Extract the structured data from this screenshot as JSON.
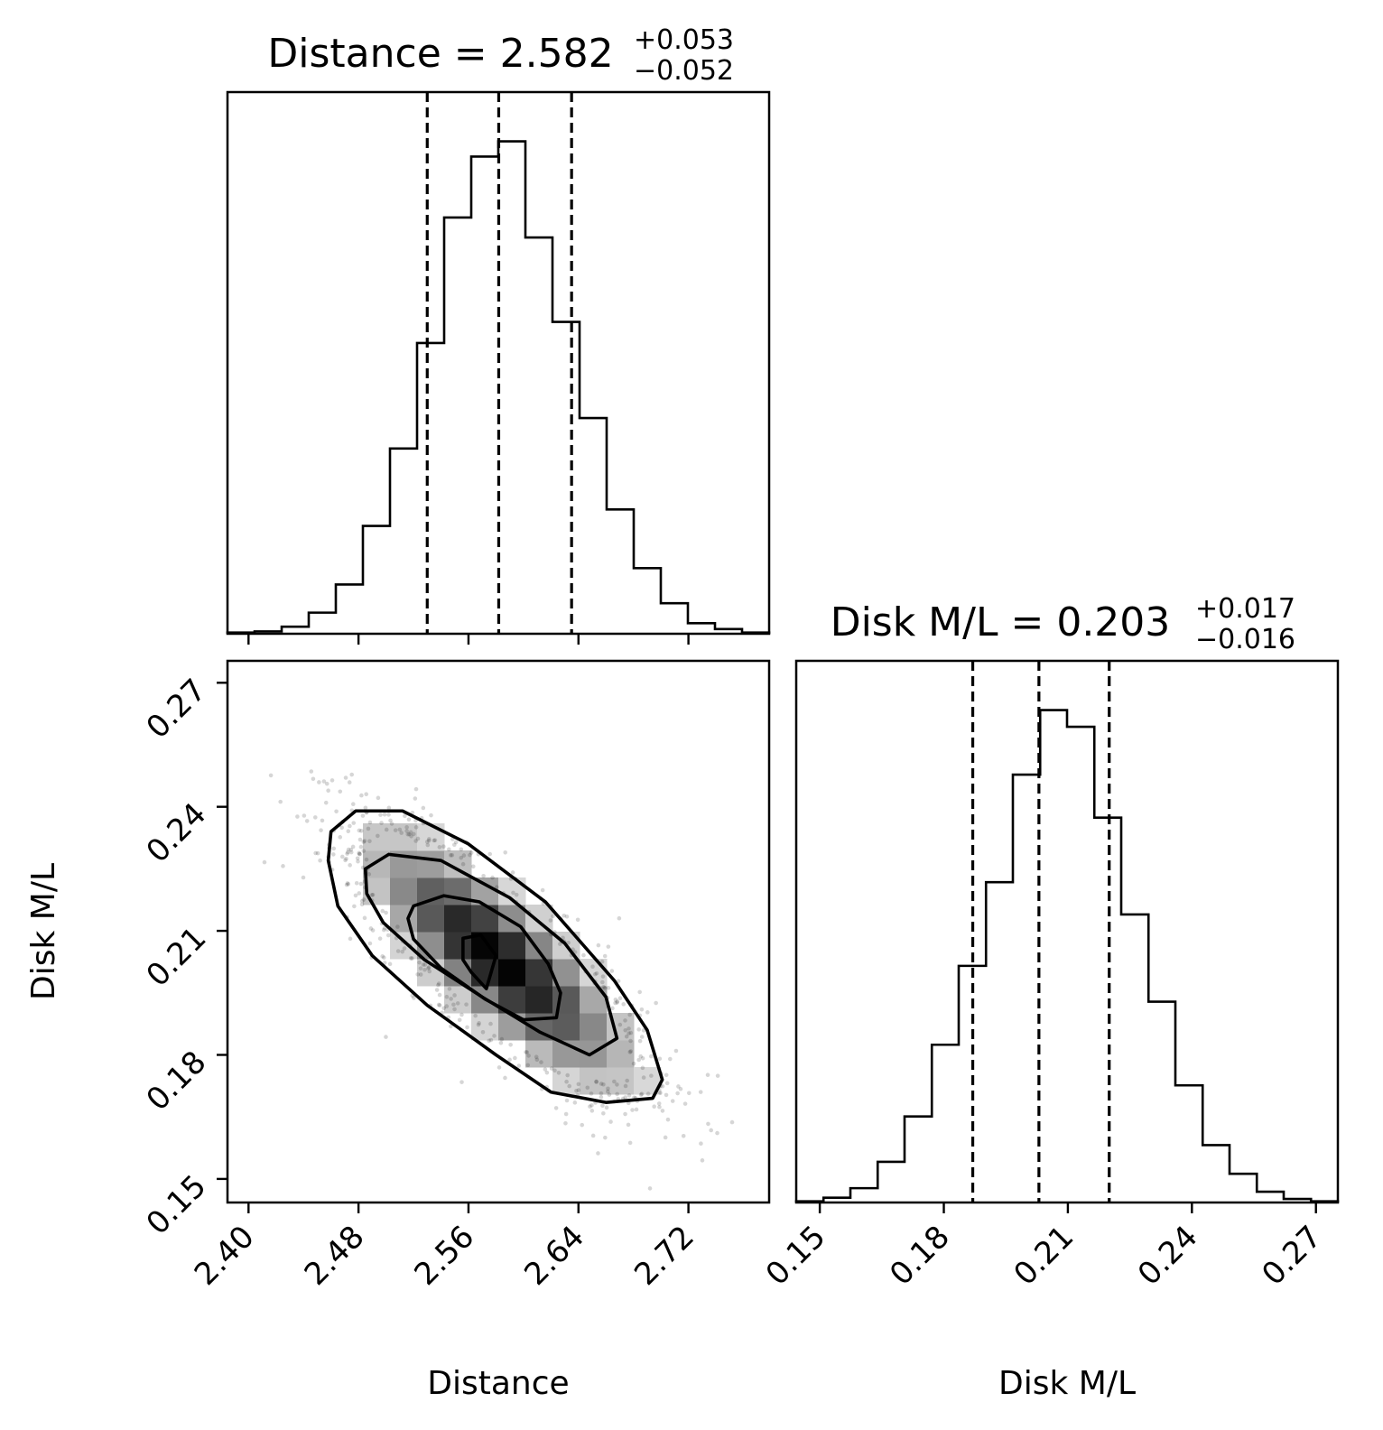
{
  "chart_data": [
    {
      "type": "histogram",
      "panel": "marginal-distance",
      "title_param": "Distance",
      "title_value": "2.582",
      "title_plus": "+0.053",
      "title_minus": "−0.052",
      "bin_edges": [
        2.3847,
        2.4044,
        2.4241,
        2.4438,
        2.4635,
        2.4832,
        2.5029,
        2.5226,
        2.5423,
        2.562,
        2.5817,
        2.6014,
        2.6211,
        2.6408,
        2.6605,
        2.6802,
        2.6999,
        2.7196,
        2.7393,
        2.759,
        2.7787
      ],
      "counts": [
        1,
        2,
        6,
        18,
        42,
        92,
        158,
        248,
        355,
        407,
        420,
        338,
        266,
        184,
        106,
        56,
        26,
        9,
        4,
        1
      ],
      "quantiles": [
        2.53,
        2.582,
        2.635
      ],
      "xlim": [
        2.3847,
        2.7787
      ],
      "grid": false
    },
    {
      "type": "scatter",
      "panel": "joint-distance-disk-ml",
      "xlabel": "Distance",
      "ylabel": "Disk M/L",
      "xlim": [
        2.3847,
        2.7787
      ],
      "ylim": [
        0.1443,
        0.2753
      ],
      "xticks": [
        "2.40",
        "2.48",
        "2.56",
        "2.64",
        "2.72"
      ],
      "yticks": [
        "0.15",
        "0.18",
        "0.21",
        "0.24",
        "0.27"
      ],
      "center": [
        2.582,
        0.203
      ],
      "contours": [
        {
          "level": "0.5sigma",
          "points": [
            [
              2.556,
              0.2082
            ],
            [
              2.569,
              0.209
            ],
            [
              2.58,
              0.204
            ],
            [
              2.573,
              0.196
            ],
            [
              2.562,
              0.2
            ],
            [
              2.556,
              0.203
            ]
          ]
        },
        {
          "level": "1sigma",
          "points": [
            [
              2.52,
              0.216
            ],
            [
              2.542,
              0.2185
            ],
            [
              2.568,
              0.217
            ],
            [
              2.598,
              0.211
            ],
            [
              2.618,
              0.202
            ],
            [
              2.627,
              0.195
            ],
            [
              2.624,
              0.189
            ],
            [
              2.6,
              0.1885
            ],
            [
              2.572,
              0.1935
            ],
            [
              2.54,
              0.201
            ],
            [
              2.52,
              0.208
            ],
            [
              2.516,
              0.213
            ]
          ]
        },
        {
          "level": "1.5sigma",
          "points": [
            [
              2.485,
              0.225
            ],
            [
              2.502,
              0.2285
            ],
            [
              2.54,
              0.227
            ],
            [
              2.59,
              0.218
            ],
            [
              2.63,
              0.207
            ],
            [
              2.66,
              0.194
            ],
            [
              2.668,
              0.184
            ],
            [
              2.648,
              0.18
            ],
            [
              2.612,
              0.1855
            ],
            [
              2.57,
              0.194
            ],
            [
              2.528,
              0.203
            ],
            [
              2.498,
              0.212
            ],
            [
              2.486,
              0.219
            ]
          ]
        },
        {
          "level": "2sigma",
          "points": [
            [
              2.46,
              0.234
            ],
            [
              2.478,
              0.239
            ],
            [
              2.512,
              0.239
            ],
            [
              2.56,
              0.231
            ],
            [
              2.616,
              0.217
            ],
            [
              2.666,
              0.198
            ],
            [
              2.69,
              0.186
            ],
            [
              2.701,
              0.174
            ],
            [
              2.694,
              0.1695
            ],
            [
              2.66,
              0.1685
            ],
            [
              2.62,
              0.171
            ],
            [
              2.58,
              0.18
            ],
            [
              2.53,
              0.192
            ],
            [
              2.49,
              0.204
            ],
            [
              2.465,
              0.216
            ],
            [
              2.458,
              0.227
            ]
          ]
        }
      ]
    },
    {
      "type": "histogram",
      "panel": "marginal-disk-ml",
      "title_param": "Disk M/L",
      "title_value": "0.203",
      "title_plus": "+0.017",
      "title_minus": "−0.016",
      "xlabel": "Disk M/L",
      "xticks": [
        "0.15",
        "0.18",
        "0.21",
        "0.24",
        "0.27"
      ],
      "bin_edges": [
        0.1443,
        0.1509,
        0.1574,
        0.164,
        0.1705,
        0.1771,
        0.1836,
        0.1902,
        0.1967,
        0.2033,
        0.2098,
        0.2164,
        0.2229,
        0.2295,
        0.236,
        0.2426,
        0.2491,
        0.2557,
        0.2622,
        0.2688,
        0.2753
      ],
      "counts": [
        1,
        4,
        12,
        34,
        72,
        132,
        198,
        268,
        358,
        412,
        398,
        322,
        241,
        168,
        98,
        48,
        24,
        9,
        3,
        1
      ],
      "quantiles": [
        0.187,
        0.203,
        0.22
      ],
      "xlim": [
        0.1443,
        0.2753
      ],
      "grid": false
    }
  ]
}
